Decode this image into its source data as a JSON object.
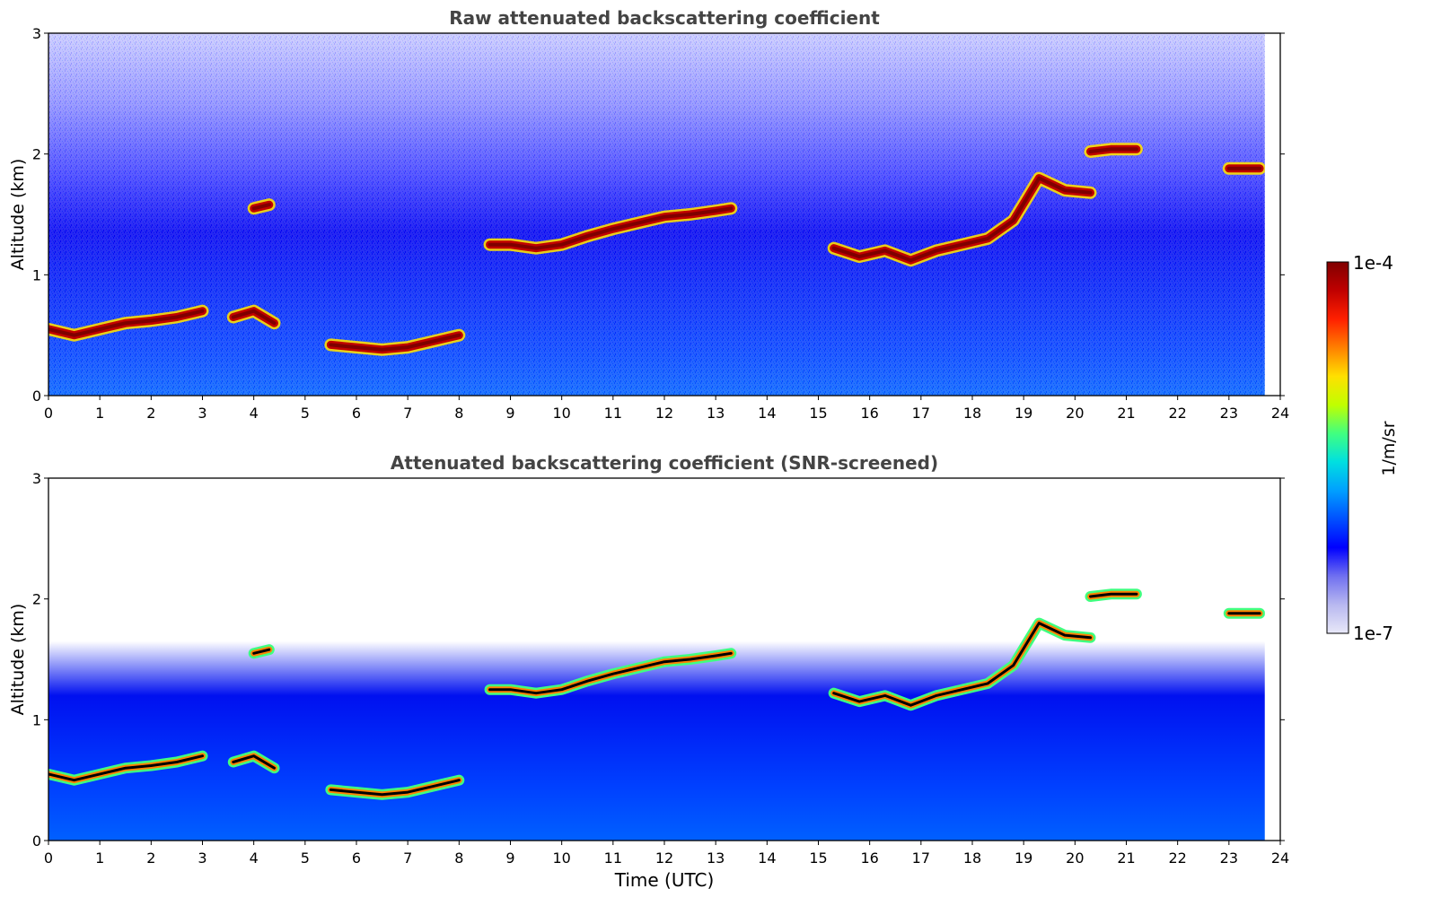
{
  "chart_data": [
    {
      "type": "heatmap",
      "title": "Raw attenuated backscattering coefficient",
      "xlabel": "",
      "ylabel": "Altitude (km)",
      "xlim": [
        0,
        24
      ],
      "ylim": [
        0,
        3
      ],
      "x_ticks": [
        "0",
        "1",
        "2",
        "3",
        "4",
        "5",
        "6",
        "7",
        "8",
        "9",
        "10",
        "11",
        "12",
        "13",
        "14",
        "15",
        "16",
        "17",
        "18",
        "19",
        "20",
        "21",
        "22",
        "23",
        "24"
      ],
      "y_ticks": [
        "0",
        "1",
        "2",
        "3"
      ],
      "data_end_hour": 23.7,
      "color_scale": "log",
      "value_range": [
        "1e-7",
        "1e-4"
      ],
      "cloud_layers": [
        {
          "x": [
            0.0,
            0.5,
            1.0,
            1.5,
            2.0,
            2.5,
            3.0
          ],
          "base_km": [
            0.55,
            0.5,
            0.55,
            0.6,
            0.62,
            0.65,
            0.7
          ]
        },
        {
          "x": [
            3.6,
            4.0,
            4.4
          ],
          "base_km": [
            0.65,
            0.7,
            0.6
          ]
        },
        {
          "x": [
            4.0,
            4.3
          ],
          "base_km": [
            1.55,
            1.58
          ]
        },
        {
          "x": [
            5.5,
            6.0,
            6.5,
            7.0,
            7.5,
            8.0
          ],
          "base_km": [
            0.42,
            0.4,
            0.38,
            0.4,
            0.45,
            0.5
          ]
        },
        {
          "x": [
            8.6,
            9.0,
            9.5,
            10.0,
            10.5,
            11.0,
            11.5,
            12.0,
            12.5,
            13.0,
            13.3
          ],
          "base_km": [
            1.25,
            1.25,
            1.22,
            1.25,
            1.32,
            1.38,
            1.43,
            1.48,
            1.5,
            1.53,
            1.55
          ]
        },
        {
          "x": [
            15.3,
            15.8,
            16.3,
            16.8,
            17.3,
            17.8,
            18.3,
            18.8,
            19.3,
            19.8,
            20.3
          ],
          "base_km": [
            1.22,
            1.15,
            1.2,
            1.12,
            1.2,
            1.25,
            1.3,
            1.45,
            1.8,
            1.7,
            1.68
          ]
        },
        {
          "x": [
            20.3,
            20.7,
            21.2
          ],
          "base_km": [
            2.02,
            2.04,
            2.04
          ]
        },
        {
          "x": [
            23.0,
            23.6
          ],
          "base_km": [
            1.88,
            1.88
          ]
        }
      ]
    },
    {
      "type": "heatmap",
      "title": "Attenuated backscattering coefficient (SNR-screened)",
      "xlabel": "Time (UTC)",
      "ylabel": "Altitude (km)",
      "xlim": [
        0,
        24
      ],
      "ylim": [
        0,
        3
      ],
      "x_ticks": [
        "0",
        "1",
        "2",
        "3",
        "4",
        "5",
        "6",
        "7",
        "8",
        "9",
        "10",
        "11",
        "12",
        "13",
        "14",
        "15",
        "16",
        "17",
        "18",
        "19",
        "20",
        "21",
        "22",
        "23",
        "24"
      ],
      "y_ticks": [
        "0",
        "1",
        "2",
        "3"
      ],
      "data_end_hour": 23.7,
      "color_scale": "log",
      "value_range": [
        "1e-7",
        "1e-4"
      ]
    }
  ],
  "colorbar": {
    "label": "1/m/sr",
    "max_label": "1e-4",
    "min_label": "1e-7",
    "colors": [
      "#e8e8f8",
      "#b8b8f0",
      "#7070f0",
      "#0000ff",
      "#0050ff",
      "#00a0ff",
      "#00e0e0",
      "#40ff80",
      "#c0ff00",
      "#ffe000",
      "#ff8000",
      "#ff2000",
      "#c00000",
      "#800000"
    ]
  }
}
